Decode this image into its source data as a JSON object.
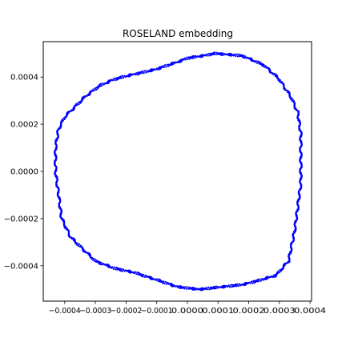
{
  "chart_data": {
    "type": "scatter",
    "title": "ROSELAND embedding",
    "xlabel": "",
    "ylabel": "",
    "xlim": [
      -0.00047,
      0.000405
    ],
    "ylim": [
      -0.00055,
      0.00055
    ],
    "xticks": [
      -0.0004,
      -0.0003,
      -0.0002,
      -0.0001,
      0.0,
      0.0001,
      0.0002,
      0.0003,
      0.0004
    ],
    "xtick_labels": [
      "−0.0004",
      "−0.0003",
      "−0.0002",
      "−0.0001",
      "0.0000",
      "0.0001",
      "0.0002",
      "0.0003",
      "0.0004"
    ],
    "yticks": [
      -0.0004,
      -0.0002,
      0.0,
      0.0002,
      0.0004
    ],
    "ytick_labels": [
      "−0.0004",
      "−0.0002",
      "0.0000",
      "0.0002",
      "0.0004"
    ],
    "grid": false,
    "series": [
      {
        "color": "#0000ff",
        "x": [
          9e-05,
          0.00018,
          0.00025,
          0.0003,
          0.00034,
          0.00036,
          0.00037,
          0.00037,
          0.00037,
          0.00036,
          0.00035,
          0.00033,
          0.00029,
          0.00024,
          0.00018,
          0.00011,
          4e-05,
          -3e-05,
          -0.0001,
          -0.00017,
          -0.00024,
          -0.0003,
          -0.00034,
          -0.00038,
          -0.00041,
          -0.00042,
          -0.00043,
          -0.00043,
          -0.00042,
          -0.0004,
          -0.00037,
          -0.00033,
          -0.00029,
          -0.00024,
          -0.00018,
          -0.00011,
          -4e-05,
          0.0,
          5e-05,
          9e-05
        ],
        "y": [
          0.0005,
          0.00049,
          0.00045,
          0.00039,
          0.00031,
          0.00025,
          0.00016,
          5e-05,
          -5e-05,
          -0.00015,
          -0.00025,
          -0.00038,
          -0.00044,
          -0.00046,
          -0.00048,
          -0.00049,
          -0.0005,
          -0.00049,
          -0.00046,
          -0.00043,
          -0.00041,
          -0.00038,
          -0.00033,
          -0.00028,
          -0.0002,
          -0.0001,
          0.0,
          0.0001,
          0.00018,
          0.00023,
          0.00027,
          0.00032,
          0.00036,
          0.00039,
          0.00041,
          0.00043,
          0.00046,
          0.00048,
          0.00049,
          0.0005
        ]
      }
    ]
  }
}
